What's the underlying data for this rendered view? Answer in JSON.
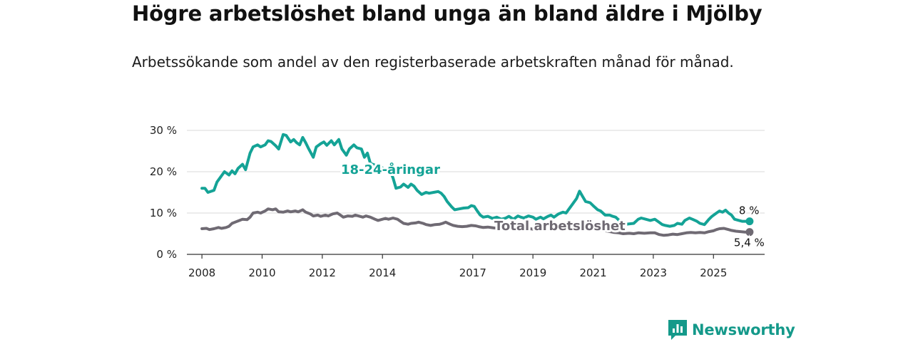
{
  "header": {
    "title": "Högre arbetslöshet bland unga än bland äldre i Mjölby",
    "subtitle": "Arbetssökande som andel av den registerbaserade arbetskraften månad för månad."
  },
  "brand": {
    "name": "Newsworthy",
    "icon": "newsworthy-logo-icon",
    "color": "#14998a"
  },
  "chart_data": {
    "type": "line",
    "title": "Högre arbetslöshet bland unga än bland äldre i Mjölby",
    "xlabel": "",
    "ylabel": "",
    "xlim": [
      2007.5,
      2026.7
    ],
    "ylim": [
      0,
      30
    ],
    "grid": true,
    "x_ticks": [
      2008,
      2010,
      2012,
      2014,
      2017,
      2019,
      2021,
      2023,
      2025
    ],
    "x_tick_labels": [
      "2008",
      "2010",
      "2012",
      "2014",
      "2017",
      "2019",
      "2021",
      "2023",
      "2025"
    ],
    "y_ticks": [
      0,
      10,
      20,
      30
    ],
    "y_tick_labels": [
      "0 %",
      "10 %",
      "20 %",
      "30 %"
    ],
    "series": [
      {
        "name": "18-24-åringar",
        "color": "#14a396",
        "end_label": "8 %",
        "points": [
          [
            2008.0,
            16
          ],
          [
            2008.1,
            16
          ],
          [
            2008.2,
            15
          ],
          [
            2008.4,
            15.5
          ],
          [
            2008.5,
            17.5
          ],
          [
            2008.6,
            18.5
          ],
          [
            2008.75,
            20
          ],
          [
            2008.9,
            19.2
          ],
          [
            2009.0,
            20.2
          ],
          [
            2009.1,
            19.5
          ],
          [
            2009.2,
            20.8
          ],
          [
            2009.35,
            21.8
          ],
          [
            2009.45,
            20.5
          ],
          [
            2009.6,
            24.5
          ],
          [
            2009.7,
            26
          ],
          [
            2009.85,
            26.5
          ],
          [
            2009.95,
            26
          ],
          [
            2010.1,
            26.5
          ],
          [
            2010.2,
            27.5
          ],
          [
            2010.3,
            27.3
          ],
          [
            2010.45,
            26.3
          ],
          [
            2010.55,
            25.5
          ],
          [
            2010.7,
            29
          ],
          [
            2010.8,
            28.8
          ],
          [
            2010.95,
            27.2
          ],
          [
            2011.05,
            27.8
          ],
          [
            2011.15,
            27
          ],
          [
            2011.25,
            26.5
          ],
          [
            2011.35,
            28.3
          ],
          [
            2011.45,
            27
          ],
          [
            2011.55,
            25.5
          ],
          [
            2011.7,
            23.5
          ],
          [
            2011.8,
            26
          ],
          [
            2011.95,
            26.8
          ],
          [
            2012.05,
            27.2
          ],
          [
            2012.15,
            26.4
          ],
          [
            2012.3,
            27.5
          ],
          [
            2012.4,
            26.5
          ],
          [
            2012.55,
            27.8
          ],
          [
            2012.65,
            25.5
          ],
          [
            2012.8,
            24
          ],
          [
            2012.9,
            25.5
          ],
          [
            2013.05,
            26.5
          ],
          [
            2013.15,
            25.8
          ],
          [
            2013.3,
            25.5
          ],
          [
            2013.4,
            23.5
          ],
          [
            2013.5,
            24.5
          ],
          [
            2013.6,
            22
          ],
          [
            2014.25,
            20.2
          ],
          [
            2014.35,
            18.5
          ],
          [
            2014.45,
            16
          ],
          [
            2014.6,
            16.3
          ],
          [
            2014.7,
            17
          ],
          [
            2014.85,
            16.2
          ],
          [
            2014.95,
            17
          ],
          [
            2015.05,
            16.5
          ],
          [
            2015.15,
            15.5
          ],
          [
            2015.3,
            14.5
          ],
          [
            2015.45,
            15
          ],
          [
            2015.55,
            14.8
          ],
          [
            2015.7,
            15
          ],
          [
            2015.85,
            15.2
          ],
          [
            2015.95,
            14.8
          ],
          [
            2016.05,
            14
          ],
          [
            2016.15,
            12.8
          ],
          [
            2016.3,
            11.5
          ],
          [
            2016.4,
            10.8
          ],
          [
            2016.55,
            11
          ],
          [
            2016.7,
            11.2
          ],
          [
            2016.85,
            11.3
          ],
          [
            2016.95,
            11.8
          ],
          [
            2017.05,
            11.6
          ],
          [
            2017.15,
            10.5
          ],
          [
            2017.25,
            9.5
          ],
          [
            2017.35,
            9
          ],
          [
            2017.5,
            9.2
          ],
          [
            2017.65,
            8.7
          ],
          [
            2017.8,
            9
          ],
          [
            2017.95,
            8.5
          ],
          [
            2018.1,
            8.8
          ],
          [
            2018.2,
            9.2
          ],
          [
            2018.35,
            8.5
          ],
          [
            2018.5,
            9.3
          ],
          [
            2018.6,
            9
          ],
          [
            2018.7,
            8.8
          ],
          [
            2018.85,
            9.3
          ],
          [
            2019.0,
            9
          ],
          [
            2019.1,
            8.5
          ],
          [
            2019.25,
            9
          ],
          [
            2019.35,
            8.6
          ],
          [
            2019.5,
            9.2
          ],
          [
            2019.6,
            9.5
          ],
          [
            2019.7,
            9
          ],
          [
            2019.85,
            9.8
          ],
          [
            2020.0,
            10.2
          ],
          [
            2020.1,
            10
          ],
          [
            2020.2,
            11
          ],
          [
            2020.3,
            12
          ],
          [
            2020.45,
            13.5
          ],
          [
            2020.55,
            15.3
          ],
          [
            2020.65,
            14
          ],
          [
            2020.75,
            12.8
          ],
          [
            2020.9,
            12.5
          ],
          [
            2021.0,
            11.8
          ],
          [
            2021.15,
            10.8
          ],
          [
            2021.25,
            10.5
          ],
          [
            2021.4,
            9.5
          ],
          [
            2021.55,
            9.5
          ],
          [
            2021.65,
            9.2
          ],
          [
            2021.75,
            9
          ],
          [
            2021.9,
            8
          ],
          [
            2022.0,
            7.2
          ],
          [
            2022.35,
            7.5
          ],
          [
            2022.5,
            8.5
          ],
          [
            2022.6,
            8.8
          ],
          [
            2022.75,
            8.5
          ],
          [
            2022.9,
            8.2
          ],
          [
            2023.05,
            8.5
          ],
          [
            2023.15,
            8
          ],
          [
            2023.3,
            7.2
          ],
          [
            2023.4,
            7
          ],
          [
            2023.55,
            6.8
          ],
          [
            2023.7,
            7
          ],
          [
            2023.8,
            7.5
          ],
          [
            2023.95,
            7.3
          ],
          [
            2024.05,
            8.2
          ],
          [
            2024.2,
            8.8
          ],
          [
            2024.3,
            8.5
          ],
          [
            2024.45,
            8
          ],
          [
            2024.55,
            7.5
          ],
          [
            2024.7,
            7.2
          ],
          [
            2024.85,
            8.5
          ],
          [
            2024.95,
            9.2
          ],
          [
            2025.1,
            10
          ],
          [
            2025.2,
            10.5
          ],
          [
            2025.3,
            10.2
          ],
          [
            2025.4,
            10.7
          ],
          [
            2025.5,
            10
          ],
          [
            2025.6,
            9.5
          ],
          [
            2025.7,
            8.5
          ],
          [
            2025.85,
            8.2
          ],
          [
            2025.95,
            8
          ],
          [
            2026.1,
            8
          ],
          [
            2026.2,
            8
          ]
        ]
      },
      {
        "name": "Total arbetslöshet",
        "color": "#6f6a73",
        "end_label": "5,4 %",
        "points": [
          [
            2008.0,
            6.2
          ],
          [
            2008.15,
            6.3
          ],
          [
            2008.25,
            6
          ],
          [
            2008.4,
            6.2
          ],
          [
            2008.55,
            6.5
          ],
          [
            2008.65,
            6.3
          ],
          [
            2008.8,
            6.5
          ],
          [
            2008.9,
            6.8
          ],
          [
            2009.0,
            7.5
          ],
          [
            2009.1,
            7.8
          ],
          [
            2009.25,
            8.2
          ],
          [
            2009.35,
            8.5
          ],
          [
            2009.5,
            8.4
          ],
          [
            2009.6,
            9
          ],
          [
            2009.7,
            10
          ],
          [
            2009.85,
            10.2
          ],
          [
            2009.95,
            10
          ],
          [
            2010.1,
            10.5
          ],
          [
            2010.2,
            11
          ],
          [
            2010.35,
            10.8
          ],
          [
            2010.45,
            11
          ],
          [
            2010.55,
            10.3
          ],
          [
            2010.7,
            10.2
          ],
          [
            2010.85,
            10.5
          ],
          [
            2010.95,
            10.3
          ],
          [
            2011.1,
            10.5
          ],
          [
            2011.2,
            10.3
          ],
          [
            2011.35,
            10.8
          ],
          [
            2011.45,
            10.2
          ],
          [
            2011.6,
            9.8
          ],
          [
            2011.7,
            9.3
          ],
          [
            2011.85,
            9.5
          ],
          [
            2011.95,
            9.2
          ],
          [
            2012.1,
            9.5
          ],
          [
            2012.2,
            9.3
          ],
          [
            2012.35,
            9.8
          ],
          [
            2012.5,
            10
          ],
          [
            2012.6,
            9.5
          ],
          [
            2012.7,
            9
          ],
          [
            2012.85,
            9.3
          ],
          [
            2013.0,
            9.2
          ],
          [
            2013.1,
            9.5
          ],
          [
            2013.2,
            9.3
          ],
          [
            2013.35,
            9
          ],
          [
            2013.45,
            9.3
          ],
          [
            2013.6,
            9
          ],
          [
            2013.75,
            8.5
          ],
          [
            2013.85,
            8.2
          ],
          [
            2014.0,
            8.5
          ],
          [
            2014.1,
            8.7
          ],
          [
            2014.2,
            8.5
          ],
          [
            2014.35,
            8.8
          ],
          [
            2014.5,
            8.5
          ],
          [
            2014.6,
            8
          ],
          [
            2014.7,
            7.5
          ],
          [
            2014.85,
            7.3
          ],
          [
            2014.95,
            7.5
          ],
          [
            2015.1,
            7.6
          ],
          [
            2015.2,
            7.8
          ],
          [
            2015.35,
            7.5
          ],
          [
            2015.45,
            7.2
          ],
          [
            2015.6,
            7
          ],
          [
            2015.75,
            7.2
          ],
          [
            2015.9,
            7.3
          ],
          [
            2016.0,
            7.5
          ],
          [
            2016.1,
            7.8
          ],
          [
            2016.25,
            7.3
          ],
          [
            2016.35,
            7
          ],
          [
            2016.5,
            6.8
          ],
          [
            2016.65,
            6.7
          ],
          [
            2016.8,
            6.8
          ],
          [
            2016.95,
            7
          ],
          [
            2017.1,
            6.9
          ],
          [
            2017.2,
            6.7
          ],
          [
            2017.35,
            6.5
          ],
          [
            2017.5,
            6.6
          ],
          [
            2017.7,
            6.4
          ],
          [
            2017.9,
            6.3
          ],
          [
            2018.1,
            6.2
          ],
          [
            2018.3,
            6.3
          ],
          [
            2018.5,
            6.1
          ],
          [
            2018.7,
            6
          ],
          [
            2018.9,
            6.2
          ],
          [
            2019.1,
            6
          ],
          [
            2019.3,
            5.9
          ],
          [
            2019.5,
            6.1
          ],
          [
            2019.7,
            6
          ],
          [
            2019.9,
            6.2
          ],
          [
            2020.1,
            6.3
          ],
          [
            2020.3,
            6.5
          ],
          [
            2020.5,
            6.7
          ],
          [
            2020.7,
            6.5
          ],
          [
            2020.9,
            6.2
          ],
          [
            2021.1,
            6
          ],
          [
            2021.3,
            5.8
          ],
          [
            2021.5,
            5.6
          ],
          [
            2021.7,
            5.3
          ],
          [
            2021.85,
            5.2
          ],
          [
            2022.0,
            5
          ],
          [
            2022.2,
            5.1
          ],
          [
            2022.35,
            5
          ],
          [
            2022.5,
            5.2
          ],
          [
            2022.7,
            5.1
          ],
          [
            2022.9,
            5.2
          ],
          [
            2023.05,
            5.2
          ],
          [
            2023.2,
            4.8
          ],
          [
            2023.35,
            4.6
          ],
          [
            2023.5,
            4.7
          ],
          [
            2023.65,
            4.9
          ],
          [
            2023.8,
            4.8
          ],
          [
            2023.95,
            5
          ],
          [
            2024.1,
            5.2
          ],
          [
            2024.25,
            5.3
          ],
          [
            2024.4,
            5.2
          ],
          [
            2024.55,
            5.3
          ],
          [
            2024.7,
            5.2
          ],
          [
            2024.85,
            5.5
          ],
          [
            2025.0,
            5.7
          ],
          [
            2025.1,
            6
          ],
          [
            2025.2,
            6.2
          ],
          [
            2025.35,
            6.3
          ],
          [
            2025.5,
            6
          ],
          [
            2025.6,
            5.8
          ],
          [
            2025.75,
            5.6
          ],
          [
            2025.9,
            5.5
          ],
          [
            2026.05,
            5.4
          ],
          [
            2026.2,
            5.4
          ]
        ]
      }
    ]
  }
}
